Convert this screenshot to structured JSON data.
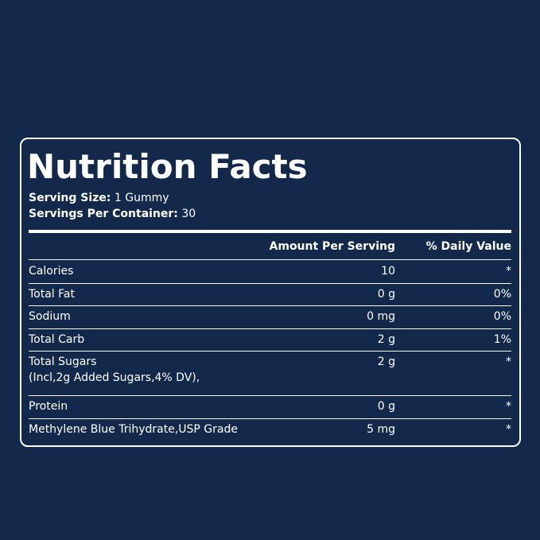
{
  "title": "Nutrition Facts",
  "serving_size": {
    "label": "Serving Size:",
    "value": "1 Gummy"
  },
  "servings_per_container": {
    "label": "Servings Per Container:",
    "value": "30"
  },
  "table": {
    "header": [
      "Amount Per Serving",
      "% Daily Value"
    ],
    "rows": [
      {
        "name": "Calories",
        "amount": "10",
        "dv": "*"
      },
      {
        "name": "Total Fat",
        "amount": "0 g",
        "dv": "0%"
      },
      {
        "name": "Sodium",
        "amount": "0 mg",
        "dv": "0%"
      },
      {
        "name": "Total Carb",
        "amount": "2 g",
        "dv": "1%"
      },
      {
        "name": "Total Sugars",
        "note": "(Incl,2g Added Sugars,4% DV),",
        "amount": "2 g",
        "dv": "*"
      },
      {
        "name": "Protein",
        "amount": "0 g",
        "dv": "*"
      },
      {
        "name": "Methylene Blue Trihydrate,USP Grade",
        "amount": "5 mg",
        "dv": "*"
      }
    ]
  }
}
